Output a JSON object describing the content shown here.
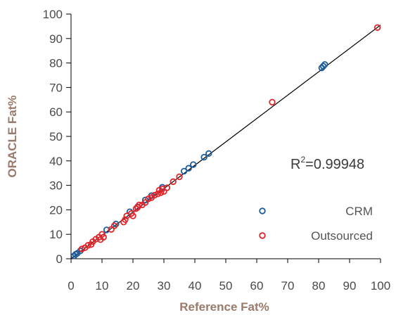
{
  "chart_data": {
    "type": "scatter",
    "title": "",
    "xlabel": "Reference Fat%",
    "ylabel": "ORACLE Fat%",
    "xlim": [
      0,
      100
    ],
    "ylim": [
      0,
      100
    ],
    "x_ticks": [
      0,
      10,
      20,
      30,
      40,
      50,
      60,
      70,
      80,
      90,
      100
    ],
    "y_ticks": [
      0,
      10,
      20,
      30,
      40,
      50,
      60,
      70,
      80,
      90,
      100
    ],
    "annotation": {
      "prefix": "R",
      "sup": "2",
      "value": "=0.99948"
    },
    "fit_line": {
      "x": [
        0,
        100
      ],
      "y": [
        0,
        95.5
      ]
    },
    "legend_position": "right",
    "grid": false,
    "series": [
      {
        "name": "CRM",
        "color": "#1f5c99",
        "points": [
          [
            1,
            1.2
          ],
          [
            1.5,
            1.8
          ],
          [
            2,
            2.2
          ],
          [
            3,
            3.2
          ],
          [
            11.5,
            11.8
          ],
          [
            14.5,
            14.2
          ],
          [
            19,
            19.2
          ],
          [
            21.5,
            21.2
          ],
          [
            24,
            24
          ],
          [
            26,
            25.8
          ],
          [
            29.5,
            29.2
          ],
          [
            36.5,
            35.8
          ],
          [
            38,
            37
          ],
          [
            39.5,
            38.5
          ],
          [
            43,
            41.5
          ],
          [
            44.5,
            43
          ],
          [
            81,
            78
          ],
          [
            81.5,
            78.7
          ],
          [
            82,
            79.4
          ]
        ]
      },
      {
        "name": "Outsourced",
        "color": "#e0252b",
        "points": [
          [
            3.5,
            4
          ],
          [
            4.5,
            4.5
          ],
          [
            5.5,
            5.5
          ],
          [
            6.5,
            5.8
          ],
          [
            7,
            7
          ],
          [
            8,
            8
          ],
          [
            9,
            8.8
          ],
          [
            9.5,
            7.8
          ],
          [
            10,
            10
          ],
          [
            10.5,
            8.8
          ],
          [
            13,
            12
          ],
          [
            14,
            13.5
          ],
          [
            17,
            15
          ],
          [
            17.5,
            16
          ],
          [
            18,
            17.5
          ],
          [
            19.5,
            18.5
          ],
          [
            20,
            17.5
          ],
          [
            21,
            20.5
          ],
          [
            21.5,
            21
          ],
          [
            22,
            22
          ],
          [
            23,
            22
          ],
          [
            24,
            23
          ],
          [
            25,
            24.5
          ],
          [
            26,
            25
          ],
          [
            27,
            26
          ],
          [
            28,
            26.5
          ],
          [
            28.5,
            28
          ],
          [
            29,
            27
          ],
          [
            29.5,
            28.5
          ],
          [
            30,
            27.5
          ],
          [
            31,
            29
          ],
          [
            33,
            31.5
          ],
          [
            35,
            33.5
          ],
          [
            65,
            64
          ],
          [
            99,
            94.5
          ]
        ]
      }
    ]
  }
}
